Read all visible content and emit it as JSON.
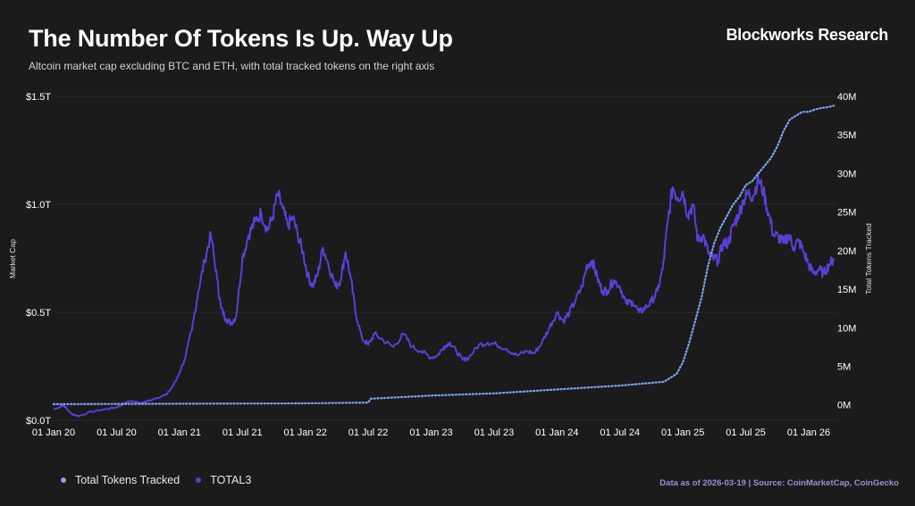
{
  "header": {
    "title": "The Number Of Tokens Is Up. Way Up",
    "brand": "Blockworks Research",
    "subtitle": "Altcoin market cap excluding BTC and ETH, with total tracked tokens on the right axis"
  },
  "footer": {
    "source": "Data as of 2026-03-19 | Source: CoinMarketCap, CoinGecko"
  },
  "colors": {
    "background": "#1b1b1b",
    "total3": "#5b3fd8",
    "tokens": "#7aa6f0",
    "grid": "#2e2e2e"
  },
  "chart_data": {
    "type": "line",
    "title": "The Number Of Tokens Is Up. Way Up",
    "ylabel": "Market Cap",
    "y2label": "Total Tokens Tracked",
    "ylim": [
      0,
      1.5
    ],
    "y2lim": [
      -2,
      40
    ],
    "yticks": [
      {
        "value": 0,
        "label": "$0.0T"
      },
      {
        "value": 0.5,
        "label": "$0.5T"
      },
      {
        "value": 1.0,
        "label": "$1.0T"
      },
      {
        "value": 1.5,
        "label": "$1.5T"
      }
    ],
    "y2ticks": [
      {
        "value": 0,
        "label": "0M"
      },
      {
        "value": 5,
        "label": "5M"
      },
      {
        "value": 10,
        "label": "10M"
      },
      {
        "value": 15,
        "label": "15M"
      },
      {
        "value": 20,
        "label": "20M"
      },
      {
        "value": 25,
        "label": "25M"
      },
      {
        "value": 30,
        "label": "30M"
      },
      {
        "value": 35,
        "label": "35M"
      },
      {
        "value": 40,
        "label": "40M"
      }
    ],
    "xlim": [
      2020.0,
      2026.22
    ],
    "xticks": [
      {
        "value": 2020.0,
        "label": "01 Jan 20"
      },
      {
        "value": 2020.5,
        "label": "01 Jul 20"
      },
      {
        "value": 2021.0,
        "label": "01 Jan 21"
      },
      {
        "value": 2021.5,
        "label": "01 Jul 21"
      },
      {
        "value": 2022.0,
        "label": "01 Jan 22"
      },
      {
        "value": 2022.5,
        "label": "01 Jul 22"
      },
      {
        "value": 2023.0,
        "label": "01 Jan 23"
      },
      {
        "value": 2023.5,
        "label": "01 Jul 23"
      },
      {
        "value": 2024.0,
        "label": "01 Jan 24"
      },
      {
        "value": 2024.5,
        "label": "01 Jul 24"
      },
      {
        "value": 2025.0,
        "label": "01 Jan 25"
      },
      {
        "value": 2025.5,
        "label": "01 Jul 25"
      },
      {
        "value": 2026.0,
        "label": "01 Jan 26"
      }
    ],
    "series": [
      {
        "name": "TOTAL3",
        "axis": "left",
        "unit": "$T",
        "x": [
          2020.0,
          2020.08,
          2020.14,
          2020.2,
          2020.3,
          2020.4,
          2020.5,
          2020.6,
          2020.7,
          2020.8,
          2020.9,
          2020.97,
          2021.04,
          2021.1,
          2021.15,
          2021.2,
          2021.25,
          2021.3,
          2021.33,
          2021.37,
          2021.41,
          2021.45,
          2021.5,
          2021.55,
          2021.6,
          2021.65,
          2021.7,
          2021.74,
          2021.78,
          2021.82,
          2021.86,
          2021.9,
          2021.94,
          2021.98,
          2022.02,
          2022.06,
          2022.1,
          2022.14,
          2022.18,
          2022.24,
          2022.28,
          2022.32,
          2022.36,
          2022.4,
          2022.45,
          2022.5,
          2022.55,
          2022.62,
          2022.7,
          2022.78,
          2022.85,
          2022.92,
          2023.0,
          2023.05,
          2023.1,
          2023.15,
          2023.2,
          2023.25,
          2023.3,
          2023.38,
          2023.45,
          2023.52,
          2023.6,
          2023.68,
          2023.76,
          2023.82,
          2023.88,
          2023.94,
          2024.0,
          2024.05,
          2024.1,
          2024.15,
          2024.2,
          2024.24,
          2024.28,
          2024.32,
          2024.36,
          2024.4,
          2024.45,
          2024.5,
          2024.55,
          2024.6,
          2024.65,
          2024.7,
          2024.75,
          2024.8,
          2024.84,
          2024.88,
          2024.92,
          2024.96,
          2025.0,
          2025.04,
          2025.08,
          2025.12,
          2025.16,
          2025.2,
          2025.24,
          2025.28,
          2025.32,
          2025.36,
          2025.4,
          2025.44,
          2025.48,
          2025.52,
          2025.56,
          2025.6,
          2025.64,
          2025.68,
          2025.72,
          2025.76,
          2025.8,
          2025.84,
          2025.88,
          2025.92,
          2025.96,
          2026.0,
          2026.04,
          2026.08,
          2026.12,
          2026.16,
          2026.2
        ],
        "values": [
          0.05,
          0.07,
          0.03,
          0.02,
          0.04,
          0.05,
          0.06,
          0.09,
          0.08,
          0.1,
          0.12,
          0.18,
          0.28,
          0.42,
          0.6,
          0.74,
          0.86,
          0.65,
          0.52,
          0.47,
          0.45,
          0.48,
          0.75,
          0.86,
          0.92,
          0.96,
          0.88,
          0.94,
          1.05,
          0.98,
          0.9,
          0.94,
          0.86,
          0.78,
          0.67,
          0.62,
          0.68,
          0.8,
          0.73,
          0.62,
          0.65,
          0.78,
          0.66,
          0.5,
          0.38,
          0.35,
          0.4,
          0.37,
          0.34,
          0.4,
          0.34,
          0.32,
          0.29,
          0.3,
          0.34,
          0.36,
          0.32,
          0.28,
          0.29,
          0.35,
          0.36,
          0.35,
          0.33,
          0.3,
          0.32,
          0.31,
          0.36,
          0.43,
          0.5,
          0.46,
          0.5,
          0.56,
          0.62,
          0.72,
          0.74,
          0.66,
          0.6,
          0.6,
          0.65,
          0.62,
          0.54,
          0.55,
          0.5,
          0.52,
          0.55,
          0.6,
          0.7,
          0.92,
          1.08,
          1.03,
          1.06,
          0.95,
          1.0,
          0.83,
          0.86,
          0.78,
          0.75,
          0.74,
          0.82,
          0.82,
          0.9,
          0.95,
          1.02,
          1.05,
          1.04,
          1.12,
          1.06,
          0.96,
          0.86,
          0.85,
          0.82,
          0.86,
          0.8,
          0.83,
          0.78,
          0.72,
          0.68,
          0.7,
          0.68,
          0.72,
          0.75
        ]
      },
      {
        "name": "Total Tokens Tracked",
        "axis": "right",
        "unit": "M",
        "x": [
          2020.0,
          2021.0,
          2022.0,
          2022.5,
          2022.52,
          2023.0,
          2023.5,
          2024.0,
          2024.5,
          2024.85,
          2024.95,
          2025.0,
          2025.05,
          2025.1,
          2025.15,
          2025.2,
          2025.25,
          2025.3,
          2025.35,
          2025.4,
          2025.45,
          2025.5,
          2025.55,
          2025.6,
          2025.65,
          2025.7,
          2025.75,
          2025.8,
          2025.85,
          2025.9,
          2025.95,
          2026.0,
          2026.05,
          2026.1,
          2026.15,
          2026.2
        ],
        "values": [
          0.1,
          0.15,
          0.2,
          0.3,
          0.8,
          1.2,
          1.5,
          2.0,
          2.5,
          3.0,
          4.0,
          5.5,
          8.0,
          11.0,
          14.0,
          18.0,
          21.0,
          23.0,
          24.5,
          26.0,
          27.0,
          28.5,
          29.0,
          30.0,
          31.0,
          32.0,
          33.5,
          35.5,
          37.0,
          37.5,
          38.0,
          38.0,
          38.3,
          38.5,
          38.6,
          38.8
        ]
      }
    ]
  }
}
